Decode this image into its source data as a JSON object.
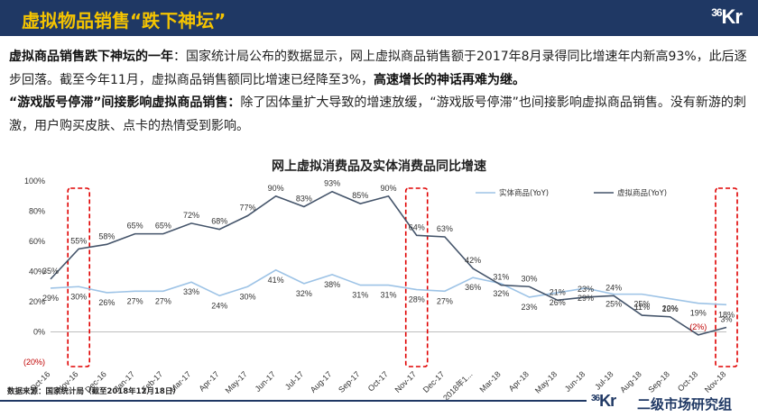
{
  "header": {
    "title": "虚拟物品销售“跌下神坛”",
    "logo_prefix": "36",
    "logo_main": "Kr"
  },
  "paragraphs": {
    "p1_bold": "虚拟商品销售跌下神坛的一年",
    "p1_text": "：国家统计局公布的数据显示，网上虚拟商品销售额于2017年8月录得同比增速年内新高93%，此后逐步回落。截至今年11月，虚拟商品销售额同比增速已经降至3%，",
    "p1_bold_end": "高速增长的神话再难为继。",
    "p2_bold": "“游戏版号停滞”间接影响虚拟商品销售：",
    "p2_text": "除了因体量扩大导致的增速放缓，“游戏版号停滞”也间接影响虚拟商品销售。没有新游的刺激，用户购买皮肤、点卡的热情受到影响。"
  },
  "chart_data": {
    "type": "line",
    "title": "网上虚拟消费品及实体消费品同比增速",
    "categories": [
      "Oct-16",
      "Nov-16",
      "Dec-16",
      "Jan-17",
      "Feb-17",
      "Mar-17",
      "Apr-17",
      "May-17",
      "Jun-17",
      "Jul-17",
      "Aug-17",
      "Sep-17",
      "Oct-17",
      "Nov-17",
      "Dec-17",
      "2018年1...",
      "Mar-18",
      "Apr-18",
      "May-18",
      "Jun-18",
      "Jul-18",
      "Aug-18",
      "Sep-18",
      "Oct-18",
      "Nov-18"
    ],
    "series": [
      {
        "name": "实体商品(YoY)",
        "color": "#9dc3e6",
        "values": [
          29,
          30,
          26,
          27,
          27,
          33,
          24,
          30,
          41,
          32,
          38,
          31,
          31,
          28,
          27,
          36,
          32,
          23,
          26,
          29,
          25,
          25,
          22,
          19,
          18
        ],
        "labels": [
          "29%",
          "30%",
          "26%",
          "27%",
          "27%",
          "33%",
          "24%",
          "30%",
          "41%",
          "32%",
          "38%",
          "31%",
          "31%",
          "28%",
          "27%",
          "36%",
          "32%",
          "23%",
          "26%",
          "29%",
          "25%",
          "25%",
          "22%",
          "19%",
          "18%"
        ]
      },
      {
        "name": "虚拟商品(YoY)",
        "color": "#44546a",
        "values": [
          35,
          55,
          58,
          65,
          65,
          72,
          68,
          77,
          90,
          83,
          93,
          85,
          90,
          64,
          63,
          42,
          31,
          30,
          21,
          23,
          24,
          11,
          10,
          -2,
          3
        ],
        "labels": [
          "35%",
          "55%",
          "58%",
          "65%",
          "65%",
          "72%",
          "68%",
          "77%",
          "90%",
          "83%",
          "93%",
          "85%",
          "90%",
          "64%",
          "63%",
          "42%",
          "31%",
          "30%",
          "21%",
          "23%",
          "24%",
          "11%",
          "10%",
          "(2%)",
          "3%"
        ]
      }
    ],
    "ylim": [
      -20,
      100
    ],
    "yticks": [
      "(20%)",
      "0%",
      "20%",
      "40%",
      "60%",
      "80%",
      "100%"
    ],
    "highlights": [
      "Nov-16",
      "Nov-17",
      "Nov-18"
    ],
    "legend": "top-right"
  },
  "source": "数据来源：国家统计局（截至2018年12月18日）",
  "footer": {
    "logo_prefix": "36",
    "logo_main": "Kr",
    "brand": "二级市场研究组"
  }
}
